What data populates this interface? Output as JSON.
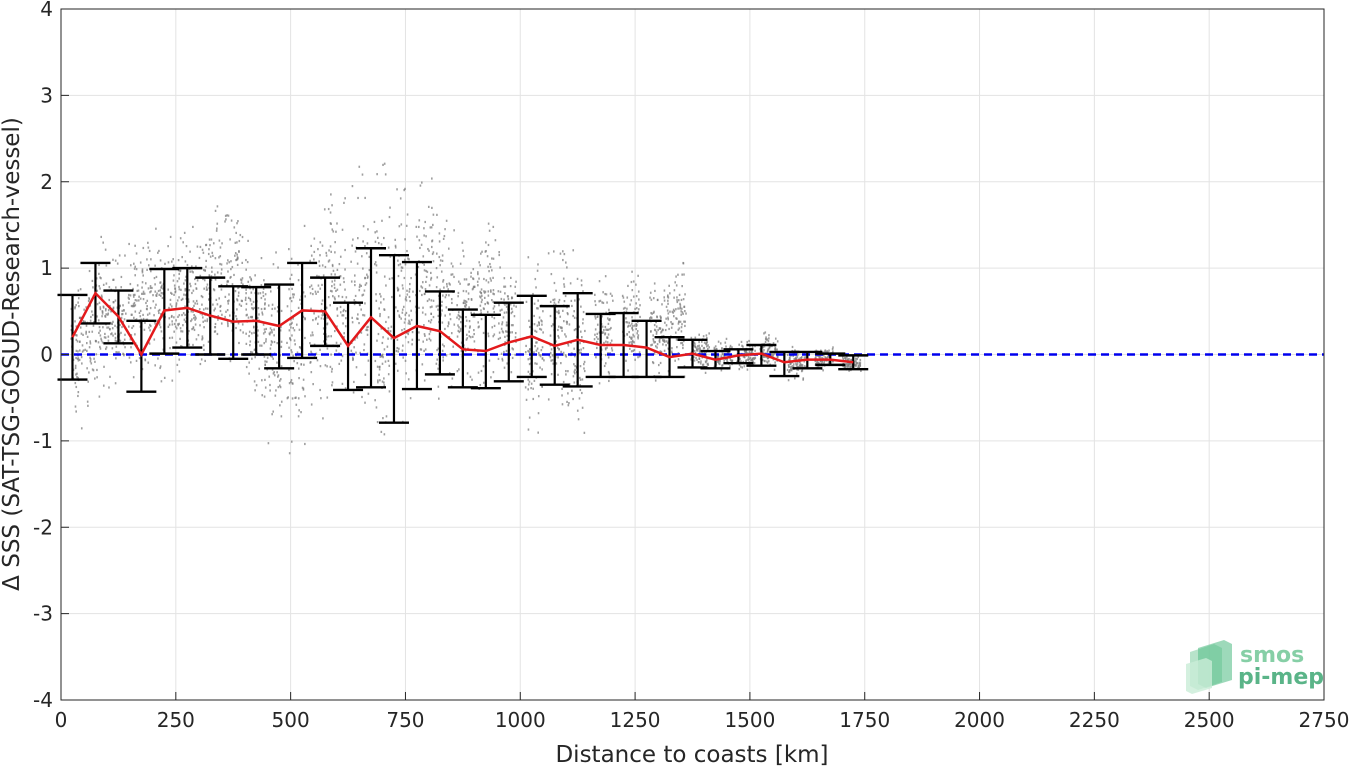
{
  "chart_data": {
    "type": "scatter",
    "title": "",
    "xlabel": "Distance to coasts [km]",
    "ylabel": "Δ SSS (SAT-TSG-GOSUD-Research-vessel)",
    "xlim": [
      0,
      2750
    ],
    "ylim": [
      -4,
      4
    ],
    "xticks": [
      "0",
      "250",
      "500",
      "750",
      "1000",
      "1250",
      "1500",
      "1750",
      "2000",
      "2250",
      "2500",
      "2750"
    ],
    "yticks": [
      "4",
      "3",
      "2",
      "1",
      "0",
      "-1",
      "-2",
      "-3",
      "-4"
    ],
    "grid": true,
    "reference_line": {
      "y": 0,
      "style": "dashed",
      "color": "#0000ee"
    },
    "colors": {
      "mean_line": "#e31a1c",
      "errorbars": "#000000",
      "scatter": "#7f7f7f",
      "zero_line": "#0000ee"
    },
    "series": [
      {
        "kind": "binned-mean",
        "x": [
          25,
          75,
          125,
          175,
          225,
          275,
          325,
          375,
          425,
          475,
          525,
          575,
          625,
          675,
          725,
          775,
          825,
          875,
          925,
          975,
          1025,
          1075,
          1125,
          1175,
          1225,
          1275,
          1325,
          1375,
          1425,
          1475,
          1525,
          1575,
          1625,
          1675,
          1725
        ],
        "mean": [
          0.2,
          0.71,
          0.44,
          0.0,
          0.51,
          0.54,
          0.45,
          0.38,
          0.39,
          0.33,
          0.51,
          0.5,
          0.1,
          0.43,
          0.19,
          0.33,
          0.27,
          0.06,
          0.04,
          0.14,
          0.21,
          0.1,
          0.17,
          0.11,
          0.11,
          0.08,
          -0.03,
          0.01,
          -0.06,
          -0.01,
          0.01,
          -0.09,
          -0.06,
          -0.06,
          -0.09
        ],
        "err_low": [
          -0.29,
          0.36,
          0.13,
          -0.43,
          0.01,
          0.08,
          0.0,
          -0.05,
          0.0,
          -0.16,
          -0.04,
          0.1,
          -0.41,
          -0.38,
          -0.79,
          -0.4,
          -0.23,
          -0.38,
          -0.39,
          -0.31,
          -0.26,
          -0.35,
          -0.37,
          -0.26,
          -0.26,
          -0.26,
          -0.26,
          -0.15,
          -0.16,
          -0.1,
          -0.13,
          -0.25,
          -0.16,
          -0.12,
          -0.17
        ],
        "err_high": [
          0.69,
          1.06,
          0.74,
          0.39,
          0.99,
          1.0,
          0.89,
          0.79,
          0.78,
          0.81,
          1.06,
          0.89,
          0.6,
          1.23,
          1.15,
          1.07,
          0.73,
          0.52,
          0.46,
          0.6,
          0.68,
          0.56,
          0.71,
          0.47,
          0.48,
          0.39,
          0.2,
          0.17,
          0.04,
          0.06,
          0.11,
          0.03,
          0.03,
          0.01,
          -0.01
        ]
      },
      {
        "kind": "scatter-clusters",
        "clusters": [
          {
            "x": 40,
            "ymin": -0.9,
            "ymax": 1.1
          },
          {
            "x": 80,
            "ymin": -0.5,
            "ymax": 1.4
          },
          {
            "x": 120,
            "ymin": -0.4,
            "ymax": 1.2
          },
          {
            "x": 165,
            "ymin": -0.3,
            "ymax": 1.4
          },
          {
            "x": 205,
            "ymin": -0.3,
            "ymax": 1.6
          },
          {
            "x": 250,
            "ymin": -0.4,
            "ymax": 1.6
          },
          {
            "x": 290,
            "ymin": -0.3,
            "ymax": 1.5
          },
          {
            "x": 330,
            "ymin": -0.1,
            "ymax": 1.8
          },
          {
            "x": 375,
            "ymin": -0.1,
            "ymax": 1.8
          },
          {
            "x": 420,
            "ymin": -0.5,
            "ymax": 1.5
          },
          {
            "x": 460,
            "ymin": -1.1,
            "ymax": 1.3
          },
          {
            "x": 510,
            "ymin": -1.2,
            "ymax": 1.6
          },
          {
            "x": 560,
            "ymin": -0.9,
            "ymax": 1.8
          },
          {
            "x": 600,
            "ymin": -0.5,
            "ymax": 2.1
          },
          {
            "x": 650,
            "ymin": -0.9,
            "ymax": 2.2
          },
          {
            "x": 700,
            "ymin": -1.3,
            "ymax": 2.3
          },
          {
            "x": 745,
            "ymin": -1.0,
            "ymax": 2.0
          },
          {
            "x": 790,
            "ymin": -0.6,
            "ymax": 2.3
          },
          {
            "x": 835,
            "ymin": -0.5,
            "ymax": 1.7
          },
          {
            "x": 880,
            "ymin": -0.5,
            "ymax": 1.5
          },
          {
            "x": 925,
            "ymin": -0.4,
            "ymax": 1.7
          },
          {
            "x": 970,
            "ymin": -0.4,
            "ymax": 1.2
          },
          {
            "x": 1030,
            "ymin": -0.9,
            "ymax": 1.2
          },
          {
            "x": 1080,
            "ymin": -0.6,
            "ymax": 1.3
          },
          {
            "x": 1120,
            "ymin": -1.1,
            "ymax": 1.3
          },
          {
            "x": 1180,
            "ymin": -0.4,
            "ymax": 1.0
          },
          {
            "x": 1240,
            "ymin": -0.3,
            "ymax": 1.0
          },
          {
            "x": 1300,
            "ymin": -0.3,
            "ymax": 0.9
          },
          {
            "x": 1340,
            "ymin": -0.3,
            "ymax": 1.2
          },
          {
            "x": 1390,
            "ymin": -0.2,
            "ymax": 0.3
          },
          {
            "x": 1440,
            "ymin": -0.2,
            "ymax": 0.2
          },
          {
            "x": 1490,
            "ymin": -0.2,
            "ymax": 0.2
          },
          {
            "x": 1540,
            "ymin": -0.2,
            "ymax": 0.3
          },
          {
            "x": 1600,
            "ymin": -0.3,
            "ymax": 0.1
          },
          {
            "x": 1660,
            "ymin": -0.2,
            "ymax": 0.1
          },
          {
            "x": 1720,
            "ymin": -0.2,
            "ymax": 0.0
          }
        ]
      }
    ]
  },
  "logo": {
    "line1": "smos",
    "line2": "pi-mep"
  }
}
